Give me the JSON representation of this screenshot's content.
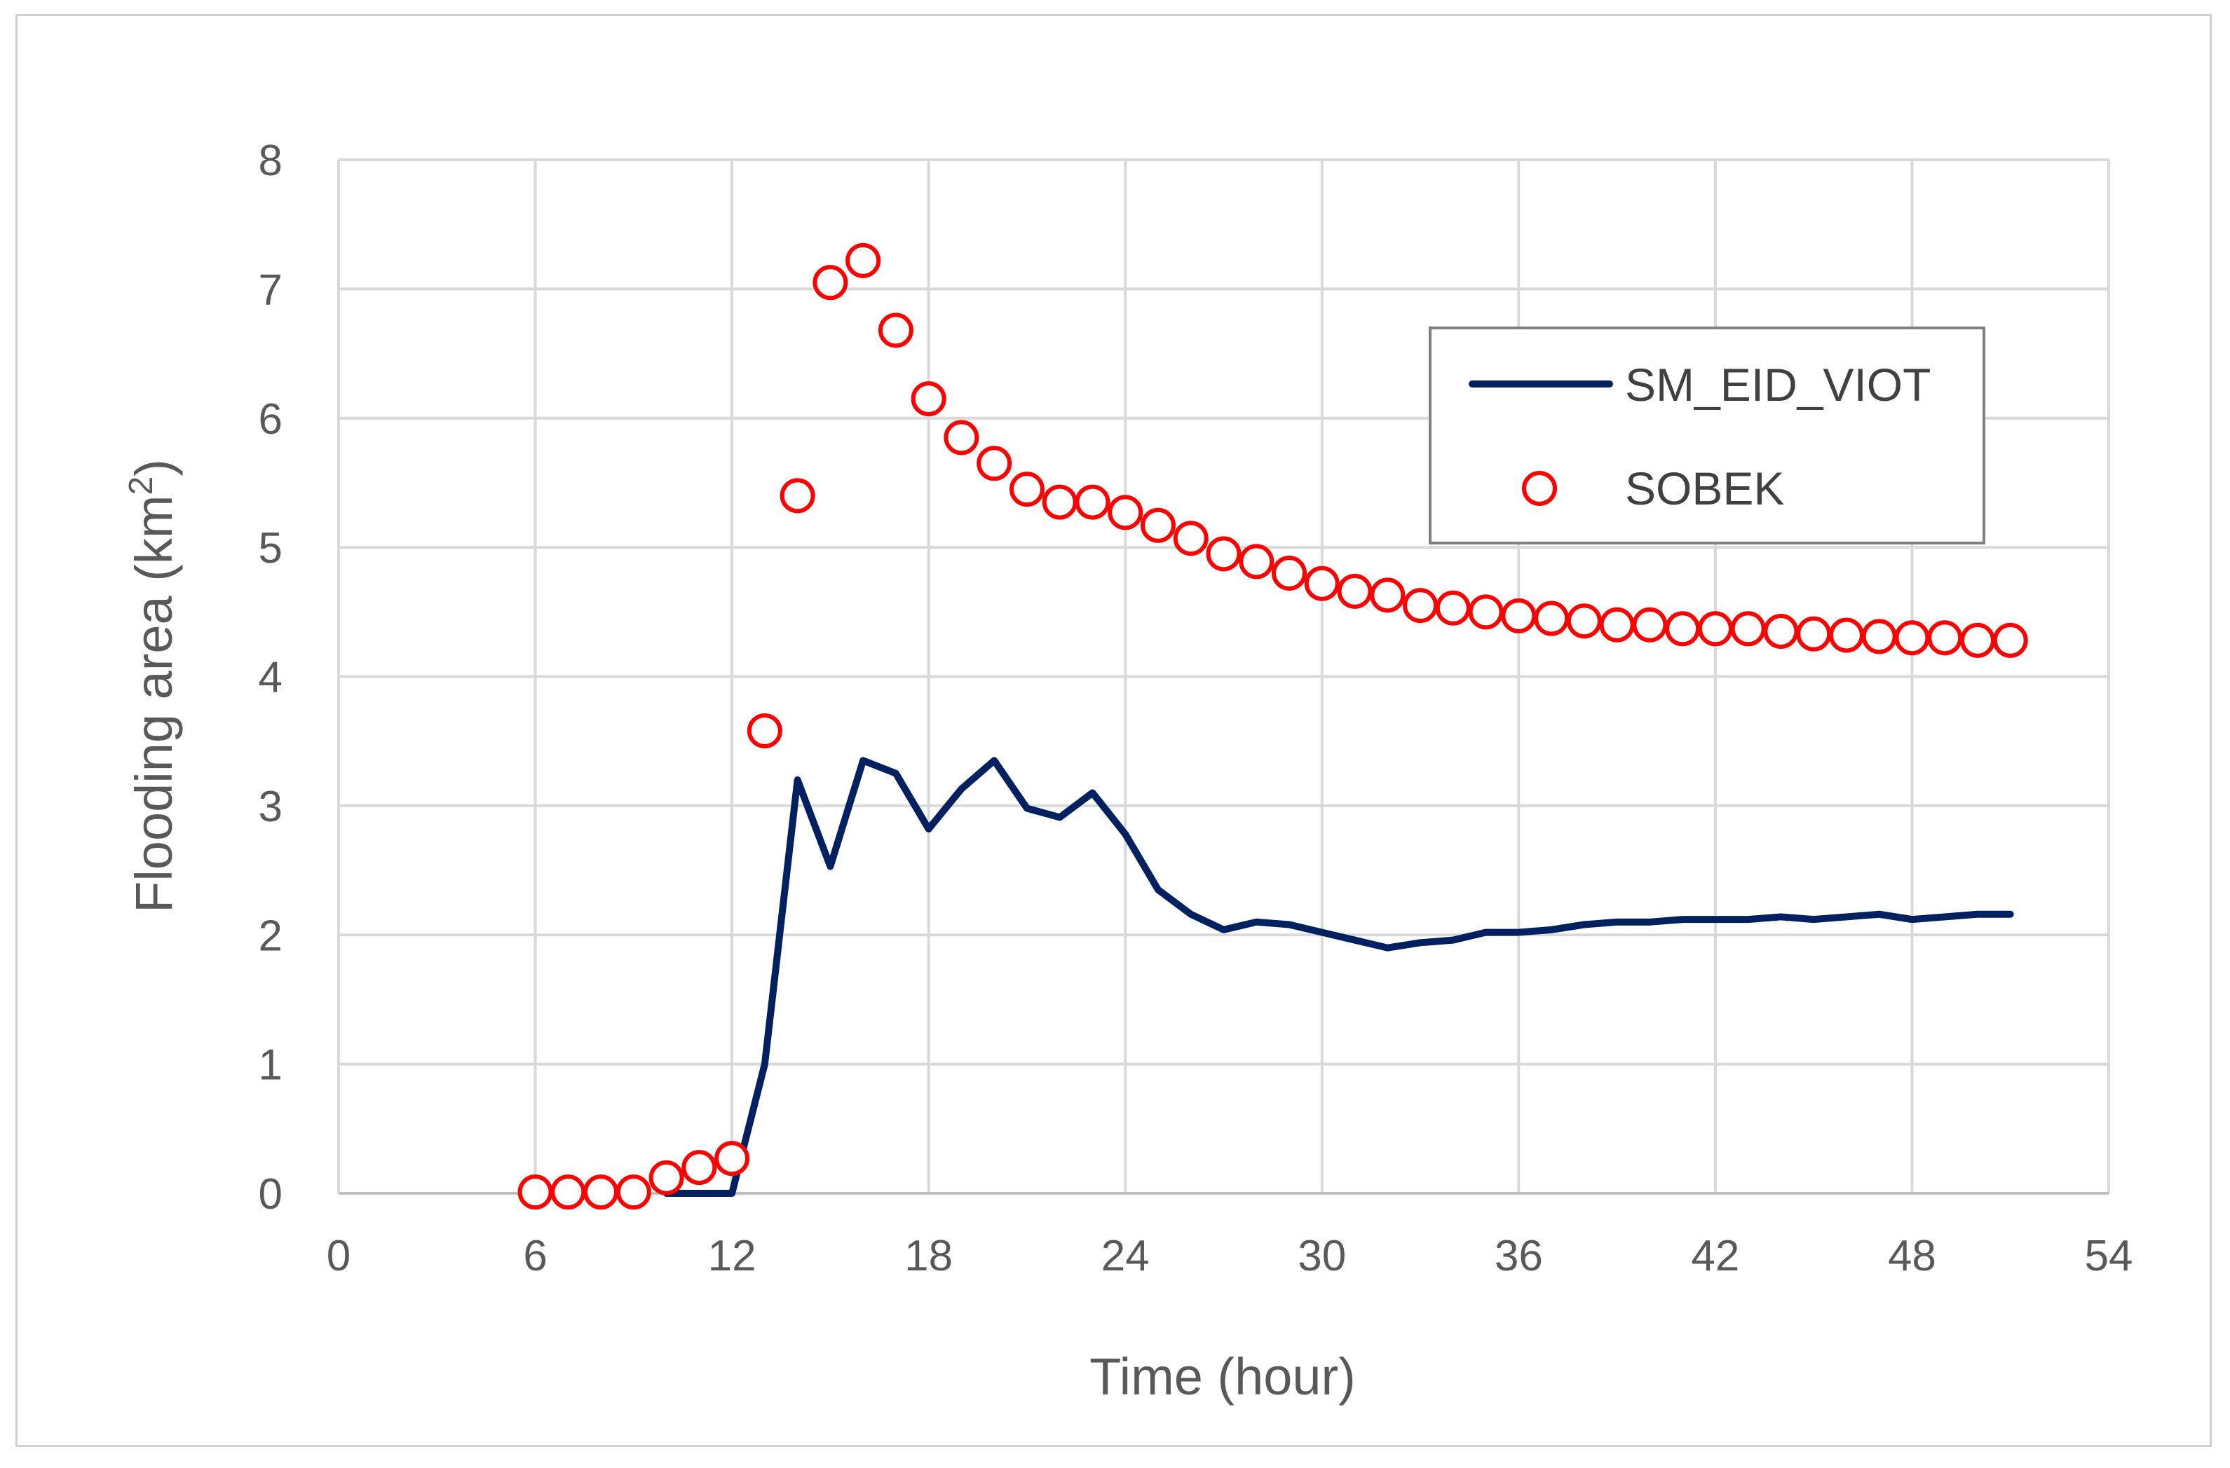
{
  "chart_data": {
    "type": "line",
    "title": "",
    "xlabel": "Time (hour)",
    "ylabel_main": "Flooding area (km",
    "ylabel_sup": "2",
    "ylabel_close": ")",
    "xlim": [
      0,
      54
    ],
    "ylim": [
      0,
      8
    ],
    "xticks": [
      0,
      6,
      12,
      18,
      24,
      30,
      36,
      42,
      48,
      54
    ],
    "yticks": [
      0,
      1,
      2,
      3,
      4,
      5,
      6,
      7,
      8
    ],
    "grid": true,
    "legend_position": "top-right",
    "series": [
      {
        "name": "SM_EID_VIOT",
        "style": "line",
        "color": "#002060",
        "x": [
          10,
          11,
          12,
          13,
          14,
          15,
          16,
          17,
          18,
          19,
          20,
          21,
          22,
          23,
          24,
          25,
          26,
          27,
          28,
          29,
          30,
          31,
          32,
          33,
          34,
          35,
          36,
          37,
          38,
          39,
          40,
          41,
          42,
          43,
          44,
          45,
          46,
          47,
          48,
          49,
          50,
          51
        ],
        "y": [
          0,
          0,
          0,
          1.0,
          3.2,
          2.53,
          3.35,
          3.25,
          2.82,
          3.13,
          3.35,
          2.98,
          2.91,
          3.1,
          2.78,
          2.35,
          2.16,
          2.04,
          2.1,
          2.08,
          2.02,
          1.96,
          1.9,
          1.94,
          1.96,
          2.02,
          2.02,
          2.04,
          2.08,
          2.1,
          2.1,
          2.12,
          2.12,
          2.12,
          2.14,
          2.12,
          2.14,
          2.16,
          2.12,
          2.14,
          2.16,
          2.16
        ]
      },
      {
        "name": "SOBEK",
        "style": "marker",
        "color": "#ff0000",
        "x": [
          6,
          7,
          8,
          9,
          10,
          11,
          12,
          13,
          14,
          15,
          16,
          17,
          18,
          19,
          20,
          21,
          22,
          23,
          24,
          25,
          26,
          27,
          28,
          29,
          30,
          31,
          32,
          33,
          34,
          35,
          36,
          37,
          38,
          39,
          40,
          41,
          42,
          43,
          44,
          45,
          46,
          47,
          48,
          49,
          50,
          51
        ],
        "y": [
          0.01,
          0.01,
          0.01,
          0.01,
          0.12,
          0.2,
          0.27,
          3.58,
          5.4,
          7.05,
          7.22,
          6.68,
          6.15,
          5.85,
          5.65,
          5.45,
          5.35,
          5.35,
          5.27,
          5.17,
          5.07,
          4.95,
          4.89,
          4.8,
          4.72,
          4.66,
          4.63,
          4.55,
          4.53,
          4.5,
          4.47,
          4.45,
          4.43,
          4.4,
          4.4,
          4.37,
          4.37,
          4.37,
          4.35,
          4.33,
          4.32,
          4.31,
          4.3,
          4.3,
          4.28,
          4.28
        ]
      }
    ]
  }
}
